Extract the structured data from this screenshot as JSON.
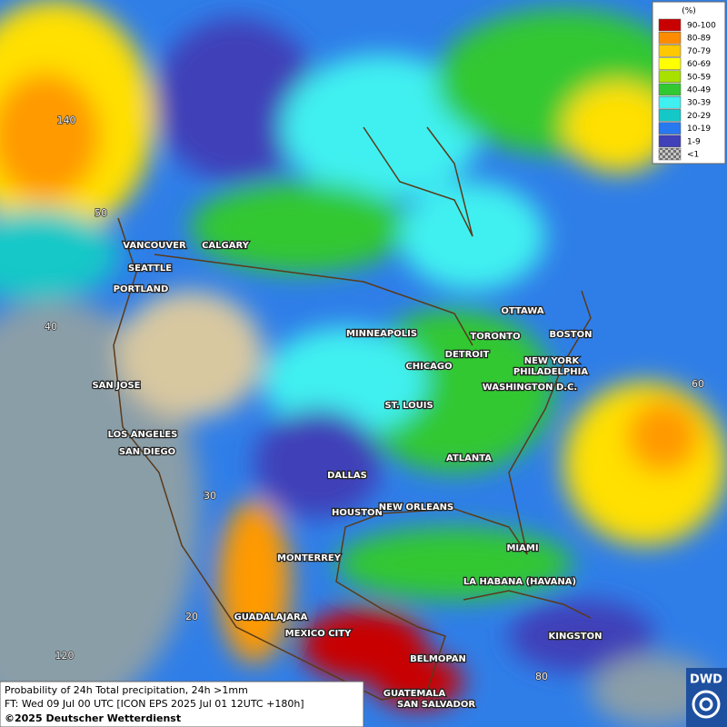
{
  "legend": {
    "unit": "(%)",
    "items": [
      {
        "label": "90-100",
        "color": "#c80000"
      },
      {
        "label": "80-89",
        "color": "#ff8c00"
      },
      {
        "label": "70-79",
        "color": "#ffc800"
      },
      {
        "label": "60-69",
        "color": "#ffff00"
      },
      {
        "label": "50-59",
        "color": "#a8e000"
      },
      {
        "label": "40-49",
        "color": "#32c832"
      },
      {
        "label": "30-39",
        "color": "#40f0f0"
      },
      {
        "label": "20-29",
        "color": "#14c8c8"
      },
      {
        "label": "10-19",
        "color": "#2878f0"
      },
      {
        "label": "1-9",
        "color": "#4040b8"
      },
      {
        "label": "<1",
        "color": "#a0a0a0"
      }
    ]
  },
  "cities": [
    "VANCOUVER",
    "CALGARY",
    "SEATTLE",
    "PORTLAND",
    "MINNEAPOLIS",
    "OTTAWA",
    "TORONTO",
    "BOSTON",
    "DETROIT",
    "CHICAGO",
    "NEW YORK",
    "PHILADELPHIA",
    "WASHINGTON D.C.",
    "SAN JOSE",
    "ST. LOUIS",
    "LOS ANGELES",
    "SAN DIEGO",
    "ATLANTA",
    "DALLAS",
    "HOUSTON",
    "NEW ORLEANS",
    "MIAMI",
    "MONTERREY",
    "LA HABANA (HAVANA)",
    "GUADALAJARA",
    "MEXICO CITY",
    "KINGSTON",
    "BELMOPAN",
    "GUATEMALA",
    "SAN SALVADOR"
  ],
  "grid_labels": [
    "140",
    "50",
    "40",
    "30",
    "20",
    "120",
    "60",
    "80"
  ],
  "footer": {
    "line1": "Probability of 24h Total precipitation, 24h >1mm",
    "line2": "FT: Wed 09 Jul 00 UTC [ICON EPS 2025 Jul 01 12UTC +180h]",
    "line3": "©2025 Deutscher Wetterdienst"
  },
  "logo": "DWD"
}
